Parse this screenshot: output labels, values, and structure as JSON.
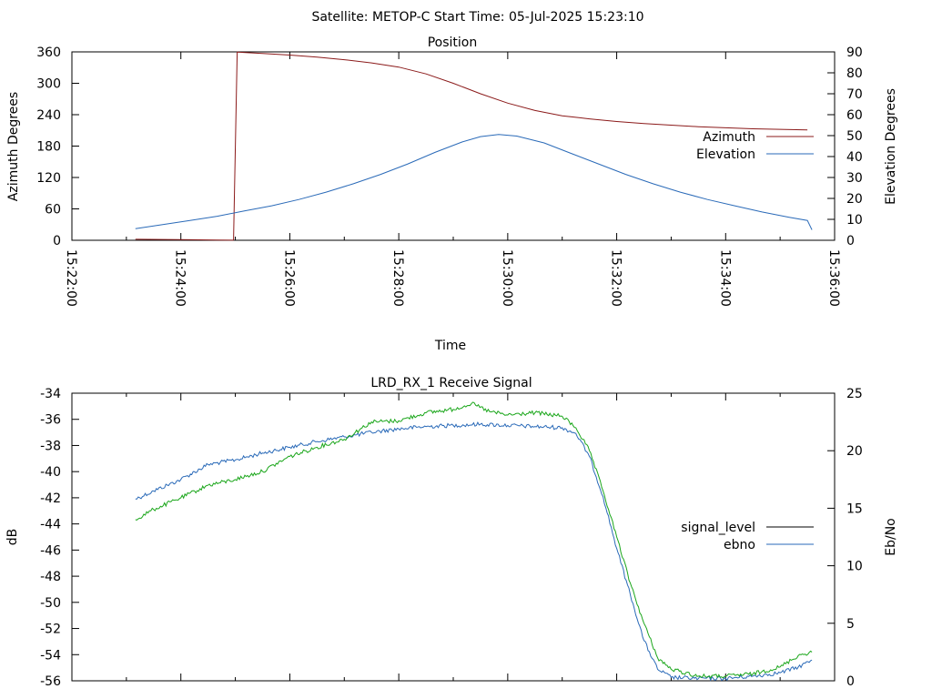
{
  "header": {
    "title": "Satellite: METOP-C    Start Time: 05-Jul-2025 15:23:10"
  },
  "chart_data": [
    {
      "type": "line",
      "title": "Position",
      "xlabel": "Time",
      "ylabel": "Azimuth Degrees",
      "y2label": "Elevation Degrees",
      "xlim": [
        "15:22:00",
        "15:36:00"
      ],
      "ylim": [
        0,
        360
      ],
      "y2lim": [
        0,
        90
      ],
      "xticks": [
        "15:22:00",
        "15:24:00",
        "15:26:00",
        "15:28:00",
        "15:30:00",
        "15:32:00",
        "15:34:00",
        "15:36:00"
      ],
      "yticks": [
        "0",
        "60",
        "120",
        "180",
        "240",
        "300",
        "360"
      ],
      "y2ticks": [
        "0",
        "10",
        "20",
        "30",
        "40",
        "50",
        "60",
        "70",
        "80",
        "90"
      ],
      "legend_position": "right",
      "grid": false,
      "series": [
        {
          "name": "Azimuth",
          "axis": "y",
          "color": "#8b1a1a",
          "points": [
            [
              "15:23:10",
              2
            ],
            [
              "15:23:40",
              1.5
            ],
            [
              "15:24:10",
              1
            ],
            [
              "15:24:40",
              0.5
            ],
            [
              "15:24:57",
              0.2
            ],
            [
              "15:24:58",
              0.5
            ],
            [
              "15:25:00",
              180
            ],
            [
              "15:25:02",
              359.5
            ],
            [
              "15:25:30",
              357
            ],
            [
              "15:26:00",
              354
            ],
            [
              "15:26:30",
              350
            ],
            [
              "15:27:00",
              345
            ],
            [
              "15:27:30",
              339
            ],
            [
              "15:28:00",
              331
            ],
            [
              "15:28:30",
              318
            ],
            [
              "15:29:00",
              300
            ],
            [
              "15:29:30",
              280
            ],
            [
              "15:30:00",
              262
            ],
            [
              "15:30:30",
              248
            ],
            [
              "15:31:00",
              238
            ],
            [
              "15:31:30",
              232
            ],
            [
              "15:32:00",
              227
            ],
            [
              "15:32:30",
              223
            ],
            [
              "15:33:00",
              220
            ],
            [
              "15:33:30",
              217
            ],
            [
              "15:34:00",
              215
            ],
            [
              "15:34:30",
              213
            ],
            [
              "15:35:00",
              212
            ],
            [
              "15:35:30",
              211
            ]
          ]
        },
        {
          "name": "Elevation",
          "axis": "y2",
          "color": "#2a6ab8",
          "points": [
            [
              "15:23:10",
              5.5
            ],
            [
              "15:23:40",
              7.5
            ],
            [
              "15:24:10",
              9.5
            ],
            [
              "15:24:40",
              11.5
            ],
            [
              "15:25:10",
              14
            ],
            [
              "15:25:40",
              16.5
            ],
            [
              "15:26:10",
              19.5
            ],
            [
              "15:26:40",
              23
            ],
            [
              "15:27:10",
              27
            ],
            [
              "15:27:40",
              31.5
            ],
            [
              "15:28:10",
              36.5
            ],
            [
              "15:28:40",
              42
            ],
            [
              "15:29:10",
              47
            ],
            [
              "15:29:30",
              49.5
            ],
            [
              "15:29:50",
              50.5
            ],
            [
              "15:30:10",
              49.8
            ],
            [
              "15:30:40",
              46.5
            ],
            [
              "15:31:10",
              41.5
            ],
            [
              "15:31:40",
              36.5
            ],
            [
              "15:32:10",
              31.5
            ],
            [
              "15:32:40",
              27
            ],
            [
              "15:33:10",
              23
            ],
            [
              "15:33:40",
              19.5
            ],
            [
              "15:34:10",
              16.5
            ],
            [
              "15:34:40",
              13.5
            ],
            [
              "15:35:10",
              11
            ],
            [
              "15:35:30",
              9.5
            ],
            [
              "15:35:35",
              5
            ]
          ]
        }
      ]
    },
    {
      "type": "line",
      "title": "LRD_RX_1 Receive Signal",
      "ylabel": "dB",
      "y2label": "Eb/No",
      "xlim": [
        "15:22:00",
        "15:36:00"
      ],
      "ylim": [
        -56,
        -34
      ],
      "y2lim": [
        0,
        25
      ],
      "xtick_marks": [
        "15:22:00",
        "15:23:00",
        "15:24:00",
        "15:25:00",
        "15:26:00",
        "15:27:00",
        "15:28:00",
        "15:29:00",
        "15:30:00",
        "15:31:00",
        "15:32:00",
        "15:33:00",
        "15:34:00",
        "15:35:00",
        "15:36:00"
      ],
      "yticks": [
        "-34",
        "-36",
        "-38",
        "-40",
        "-42",
        "-44",
        "-46",
        "-48",
        "-50",
        "-52",
        "-54",
        "-56"
      ],
      "y2ticks": [
        "0",
        "5",
        "10",
        "15",
        "20",
        "25"
      ],
      "legend_position": "right",
      "grid": false,
      "series": [
        {
          "name": "signal_level",
          "axis": "y",
          "color": "#000000",
          "swatch_only": true,
          "points": []
        },
        {
          "name": "ebno",
          "axis": "y2",
          "color": "#2a6ab8",
          "points": [
            [
              "15:23:10",
              15.8
            ],
            [
              "15:23:30",
              16.5
            ],
            [
              "15:24:00",
              17.5
            ],
            [
              "15:24:30",
              18.8
            ],
            [
              "15:25:00",
              19.2
            ],
            [
              "15:25:30",
              19.8
            ],
            [
              "15:26:00",
              20.3
            ],
            [
              "15:26:30",
              20.8
            ],
            [
              "15:27:00",
              21.2
            ],
            [
              "15:27:30",
              21.6
            ],
            [
              "15:28:00",
              21.9
            ],
            [
              "15:28:30",
              22.1
            ],
            [
              "15:29:00",
              22.2
            ],
            [
              "15:29:30",
              22.3
            ],
            [
              "15:30:00",
              22.2
            ],
            [
              "15:30:30",
              22.1
            ],
            [
              "15:31:00",
              22.0
            ],
            [
              "15:31:15",
              21.5
            ],
            [
              "15:31:30",
              19.5
            ],
            [
              "15:31:45",
              16.0
            ],
            [
              "15:32:00",
              11.5
            ],
            [
              "15:32:15",
              7.5
            ],
            [
              "15:32:30",
              3.5
            ],
            [
              "15:32:45",
              1.0
            ],
            [
              "15:33:00",
              0.3
            ],
            [
              "15:33:30",
              0.2
            ],
            [
              "15:34:00",
              0.2
            ],
            [
              "15:34:30",
              0.4
            ],
            [
              "15:35:00",
              0.7
            ],
            [
              "15:35:20",
              1.2
            ],
            [
              "15:35:35",
              1.8
            ]
          ]
        },
        {
          "name": "",
          "axis": "y2",
          "color": "#1aa61a",
          "points": [
            [
              "15:23:10",
              14.0
            ],
            [
              "15:23:30",
              14.9
            ],
            [
              "15:24:00",
              15.9
            ],
            [
              "15:24:30",
              17.0
            ],
            [
              "15:25:00",
              17.5
            ],
            [
              "15:25:30",
              18.2
            ],
            [
              "15:26:00",
              19.5
            ],
            [
              "15:26:30",
              20.3
            ],
            [
              "15:27:00",
              21.0
            ],
            [
              "15:27:30",
              22.5
            ],
            [
              "15:28:00",
              22.6
            ],
            [
              "15:28:30",
              23.3
            ],
            [
              "15:29:00",
              23.6
            ],
            [
              "15:29:20",
              24.1
            ],
            [
              "15:29:40",
              23.4
            ],
            [
              "15:30:00",
              23.1
            ],
            [
              "15:30:30",
              23.3
            ],
            [
              "15:31:00",
              23.0
            ],
            [
              "15:31:15",
              22.0
            ],
            [
              "15:31:30",
              20.0
            ],
            [
              "15:31:45",
              16.5
            ],
            [
              "15:32:00",
              12.5
            ],
            [
              "15:32:15",
              8.5
            ],
            [
              "15:32:30",
              5.0
            ],
            [
              "15:32:45",
              2.0
            ],
            [
              "15:33:00",
              1.0
            ],
            [
              "15:33:30",
              0.4
            ],
            [
              "15:34:00",
              0.4
            ],
            [
              "15:34:30",
              0.6
            ],
            [
              "15:35:00",
              1.2
            ],
            [
              "15:35:20",
              2.2
            ],
            [
              "15:35:35",
              2.5
            ]
          ]
        }
      ]
    }
  ]
}
